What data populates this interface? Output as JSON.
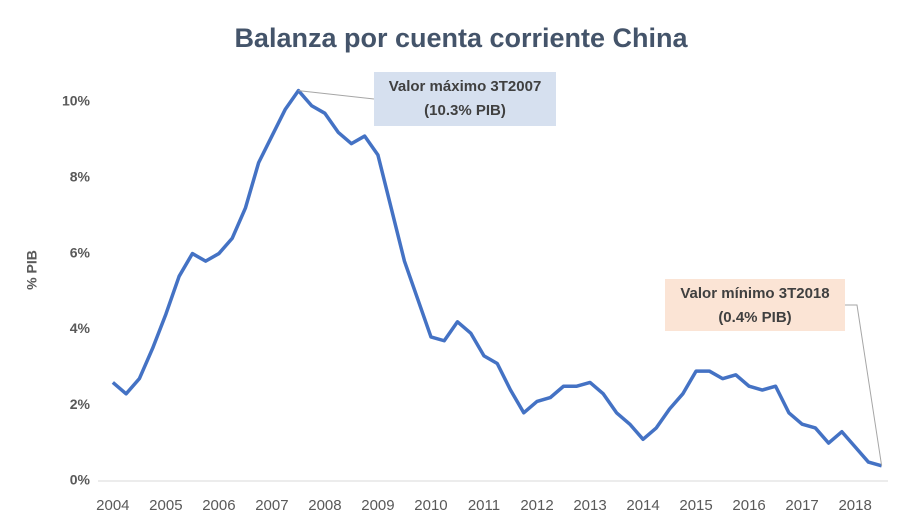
{
  "chart_data": {
    "type": "line",
    "title": "Balanza por cuenta corriente China",
    "y_label": "% PIB",
    "x": [
      2004,
      2004.25,
      2004.5,
      2004.75,
      2005,
      2005.25,
      2005.5,
      2005.75,
      2006,
      2006.25,
      2006.5,
      2006.75,
      2007,
      2007.25,
      2007.5,
      2007.75,
      2008,
      2008.25,
      2008.5,
      2008.75,
      2009,
      2009.25,
      2009.5,
      2009.75,
      2010,
      2010.25,
      2010.5,
      2010.75,
      2011,
      2011.25,
      2011.5,
      2011.75,
      2012,
      2012.25,
      2012.5,
      2012.75,
      2013,
      2013.25,
      2013.5,
      2013.75,
      2014,
      2014.25,
      2014.5,
      2014.75,
      2015,
      2015.25,
      2015.5,
      2015.75,
      2016,
      2016.25,
      2016.5,
      2016.75,
      2017,
      2017.25,
      2017.5,
      2017.75,
      2018,
      2018.25,
      2018.5
    ],
    "series": [
      {
        "name": "China",
        "color": "#4472c4",
        "values": [
          2.6,
          2.3,
          2.7,
          3.5,
          4.4,
          5.4,
          6.0,
          5.8,
          6.0,
          6.4,
          7.2,
          8.4,
          9.1,
          9.8,
          10.3,
          9.9,
          9.7,
          9.2,
          8.9,
          9.1,
          8.6,
          7.2,
          5.8,
          4.8,
          3.8,
          3.7,
          4.2,
          3.9,
          3.3,
          3.1,
          2.4,
          1.8,
          2.1,
          2.2,
          2.5,
          2.5,
          2.6,
          2.3,
          1.8,
          1.5,
          1.1,
          1.4,
          1.9,
          2.3,
          2.9,
          2.9,
          2.7,
          2.8,
          2.5,
          2.4,
          2.5,
          1.8,
          1.5,
          1.4,
          1.0,
          1.3,
          0.9,
          0.5,
          0.4
        ]
      }
    ],
    "xlim": [
      2003.72,
      2018.62
    ],
    "xticks": [
      2004,
      2005,
      2006,
      2007,
      2008,
      2009,
      2010,
      2011,
      2012,
      2013,
      2014,
      2015,
      2016,
      2017,
      2018
    ],
    "ylim": [
      0,
      10.5
    ],
    "yticks": [
      {
        "value": 0,
        "label": "0%"
      },
      {
        "value": 2,
        "label": "2%"
      },
      {
        "value": 4,
        "label": "4%"
      },
      {
        "value": 6,
        "label": "6%"
      },
      {
        "value": 8,
        "label": "8%"
      },
      {
        "value": 10,
        "label": "10%"
      }
    ],
    "grid": false,
    "annotations": [
      {
        "lines": [
          "Valor máximo 3T2007",
          "(10.3% PIB)"
        ],
        "x": 2007.5,
        "y": 10.3,
        "color": "#d6e0ef"
      },
      {
        "lines": [
          "Valor mínimo 3T2018",
          "(0.4% PIB)"
        ],
        "x": 2018.5,
        "y": 0.4,
        "color": "#fbe4d5"
      }
    ]
  }
}
